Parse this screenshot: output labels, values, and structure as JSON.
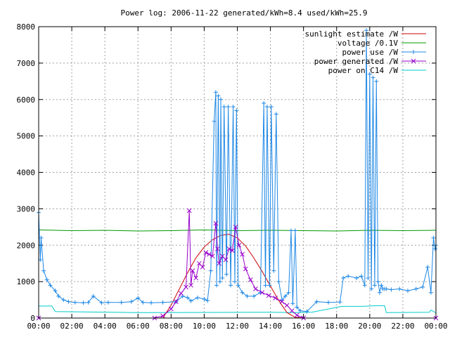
{
  "chart_data": {
    "type": "line",
    "title": "Power log: 2006-11-22 generated/kWh=8.4 used/kWh=25.9",
    "xlabel": "",
    "ylabel": "",
    "xlim": [
      0,
      24
    ],
    "ylim": [
      0,
      8000
    ],
    "grid": true,
    "legend_position": "top-right",
    "x_ticks": [
      {
        "value": 0,
        "label": "00:00"
      },
      {
        "value": 2,
        "label": "02:00"
      },
      {
        "value": 4,
        "label": "04:00"
      },
      {
        "value": 6,
        "label": "06:00"
      },
      {
        "value": 8,
        "label": "08:00"
      },
      {
        "value": 10,
        "label": "10:00"
      },
      {
        "value": 12,
        "label": "12:00"
      },
      {
        "value": 14,
        "label": "14:00"
      },
      {
        "value": 16,
        "label": "16:00"
      },
      {
        "value": 18,
        "label": "18:00"
      },
      {
        "value": 20,
        "label": "20:00"
      },
      {
        "value": 22,
        "label": "22:00"
      },
      {
        "value": 24,
        "label": "00:00"
      }
    ],
    "y_ticks": [
      {
        "value": 0,
        "label": "0"
      },
      {
        "value": 1000,
        "label": "1000"
      },
      {
        "value": 2000,
        "label": "2000"
      },
      {
        "value": 3000,
        "label": "3000"
      },
      {
        "value": 4000,
        "label": "4000"
      },
      {
        "value": 5000,
        "label": "5000"
      },
      {
        "value": 6000,
        "label": "6000"
      },
      {
        "value": 7000,
        "label": "7000"
      },
      {
        "value": 8000,
        "label": "8000"
      }
    ],
    "series": [
      {
        "name": "sunlight estimate /W",
        "color": "#cc0000",
        "marker": "none",
        "x": [
          7.5,
          8.0,
          8.5,
          9.0,
          9.5,
          10.0,
          10.5,
          11.0,
          11.5,
          12.0,
          12.5,
          13.0,
          13.5,
          14.0,
          14.5,
          15.0,
          15.5,
          16.0
        ],
        "y": [
          0,
          350,
          800,
          1250,
          1650,
          1950,
          2150,
          2270,
          2300,
          2200,
          1980,
          1650,
          1280,
          880,
          480,
          150,
          20,
          0
        ]
      },
      {
        "name": "voltage /0.1V",
        "color": "#009900",
        "marker": "none",
        "x": [
          0,
          2,
          4,
          6,
          8,
          10,
          12,
          14,
          16,
          18,
          20,
          22,
          24
        ],
        "y": [
          2420,
          2400,
          2410,
          2390,
          2400,
          2420,
          2400,
          2410,
          2400,
          2390,
          2410,
          2400,
          2410
        ]
      },
      {
        "name": "power use /W",
        "color": "#1e88e5",
        "marker": "+",
        "x": [
          0.0,
          0.1,
          0.15,
          0.3,
          0.5,
          0.7,
          1.0,
          1.2,
          1.5,
          1.8,
          2.2,
          2.7,
          3.0,
          3.3,
          3.8,
          4.2,
          5.0,
          5.6,
          6.0,
          6.3,
          6.8,
          7.5,
          8.3,
          8.7,
          9.0,
          9.2,
          9.6,
          10.0,
          10.2,
          10.4,
          10.6,
          10.7,
          10.75,
          10.85,
          10.95,
          11.0,
          11.1,
          11.2,
          11.35,
          11.45,
          11.6,
          11.75,
          11.85,
          11.95,
          12.05,
          12.3,
          12.6,
          13.0,
          13.4,
          13.6,
          13.7,
          13.8,
          13.95,
          14.05,
          14.2,
          14.35,
          14.5,
          14.7,
          14.9,
          15.1,
          15.25,
          15.35,
          15.5,
          15.6,
          15.8,
          16.2,
          16.8,
          17.5,
          18.2,
          18.4,
          18.7,
          19.2,
          19.5,
          19.7,
          19.8,
          19.9,
          20.0,
          20.1,
          20.2,
          20.3,
          20.4,
          20.5,
          20.6,
          20.7,
          20.8,
          20.9,
          21.0,
          21.3,
          21.8,
          22.3,
          22.8,
          23.2,
          23.5,
          23.7,
          23.85,
          23.95,
          24.0
        ],
        "y": [
          2900,
          1600,
          2200,
          1300,
          1050,
          900,
          750,
          600,
          500,
          450,
          430,
          420,
          430,
          600,
          420,
          430,
          430,
          450,
          550,
          430,
          420,
          430,
          450,
          600,
          560,
          470,
          560,
          520,
          480,
          1300,
          5400,
          6200,
          900,
          6100,
          1000,
          6000,
          1100,
          5800,
          1200,
          5800,
          900,
          5800,
          1000,
          5700,
          900,
          700,
          600,
          600,
          700,
          5900,
          900,
          5800,
          900,
          5800,
          1300,
          5600,
          1000,
          500,
          600,
          700,
          2400,
          400,
          2400,
          300,
          200,
          180,
          450,
          430,
          440,
          1100,
          1150,
          1100,
          1150,
          900,
          7900,
          1100,
          6700,
          800,
          6600,
          900,
          6500,
          1000,
          700,
          900,
          800,
          800,
          800,
          780,
          800,
          750,
          800,
          850,
          1400,
          700,
          2200,
          1900,
          2000
        ]
      },
      {
        "name": "power generated /W",
        "color": "#9900cc",
        "marker": "x",
        "x": [
          0,
          7.0,
          7.5,
          8.0,
          8.3,
          8.6,
          8.9,
          9.1,
          9.2,
          9.3,
          9.5,
          9.7,
          9.9,
          10.1,
          10.3,
          10.5,
          10.7,
          10.8,
          10.9,
          11.1,
          11.3,
          11.5,
          11.7,
          11.9,
          12.1,
          12.3,
          12.5,
          12.8,
          13.1,
          13.5,
          13.9,
          14.3,
          14.7,
          15.0,
          15.3,
          15.6,
          16.0,
          24.0
        ],
        "y": [
          0,
          0,
          60,
          250,
          450,
          680,
          850,
          2950,
          900,
          1300,
          1100,
          1500,
          1400,
          1800,
          1750,
          1700,
          2600,
          1900,
          1500,
          1700,
          1600,
          1900,
          1850,
          2500,
          2000,
          1750,
          1350,
          1050,
          800,
          700,
          620,
          550,
          450,
          350,
          200,
          80,
          0,
          0
        ]
      },
      {
        "name": "power on C14 /W",
        "color": "#00cccc",
        "marker": "none",
        "x": [
          0,
          0.8,
          1.0,
          6.0,
          6.5,
          14.0,
          15.5,
          16.5,
          18.3,
          19.5,
          20.5,
          20.9,
          21.0,
          23.6,
          23.7,
          24.0
        ],
        "y": [
          330,
          330,
          180,
          150,
          150,
          160,
          150,
          160,
          320,
          320,
          340,
          340,
          150,
          160,
          220,
          140
        ]
      }
    ]
  }
}
